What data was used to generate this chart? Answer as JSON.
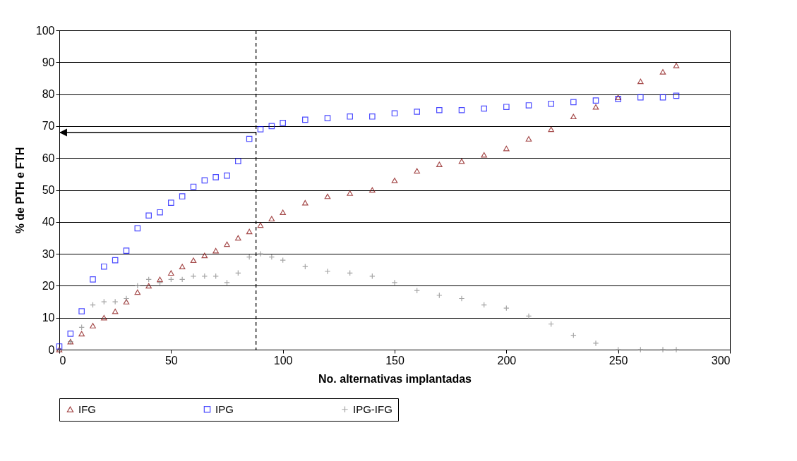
{
  "chart_data": {
    "type": "scatter",
    "xlabel": "No. alternativas implantadas",
    "ylabel": "% de PTH e FTH",
    "x": [
      0,
      5,
      10,
      15,
      20,
      25,
      30,
      35,
      40,
      45,
      50,
      55,
      60,
      65,
      70,
      75,
      80,
      85,
      90,
      95,
      100,
      110,
      120,
      130,
      140,
      150,
      160,
      170,
      180,
      190,
      200,
      210,
      220,
      230,
      240,
      250,
      260,
      270,
      276
    ],
    "series": [
      {
        "name": "IFG",
        "color": "#800000",
        "marker": "triangle",
        "values": [
          0,
          2.5,
          5,
          7.5,
          10,
          12,
          15,
          18,
          20,
          22,
          24,
          26,
          28,
          29.5,
          31,
          33,
          35,
          37,
          39,
          41,
          43,
          46,
          48,
          49,
          50,
          53,
          56,
          58,
          59,
          61,
          63,
          66,
          69,
          73,
          76,
          79,
          84,
          87,
          89
        ]
      },
      {
        "name": "IPG",
        "color": "#0000ff",
        "marker": "square",
        "values": [
          1,
          5,
          12,
          22,
          26,
          28,
          31,
          38,
          42,
          43,
          46,
          48,
          51,
          53,
          54,
          54.5,
          59,
          66,
          69,
          70,
          71,
          72,
          72.5,
          73,
          73,
          74,
          74.5,
          75,
          75,
          75.5,
          76,
          76.5,
          77,
          77.5,
          78,
          78.5,
          79,
          79,
          79.5
        ]
      },
      {
        "name": "IPG-IFG",
        "color": "#808080",
        "marker": "cross",
        "values": [
          0,
          2.5,
          7,
          14,
          15,
          15,
          16,
          20,
          22,
          21,
          22,
          22,
          23,
          23,
          23,
          21,
          24,
          29,
          30,
          29,
          28,
          26,
          24.5,
          24,
          23,
          21,
          18.5,
          17,
          16,
          14,
          13,
          10.5,
          8,
          4.5,
          2,
          0,
          0,
          0,
          0
        ]
      }
    ],
    "xlim": [
      0,
      300
    ],
    "xticks": [
      0,
      50,
      100,
      150,
      200,
      250,
      300
    ],
    "ylim": [
      0,
      100
    ],
    "yticks": [
      0,
      10,
      20,
      30,
      40,
      50,
      60,
      70,
      80,
      90,
      100
    ],
    "ref_lines": [
      {
        "axis": "x",
        "value": 88,
        "line_style": "dashed",
        "color": "#000000"
      },
      {
        "axis": "y",
        "value": 68,
        "line_style": "solid",
        "color": "#000000"
      }
    ],
    "grid": "y",
    "legend": "bottom"
  }
}
